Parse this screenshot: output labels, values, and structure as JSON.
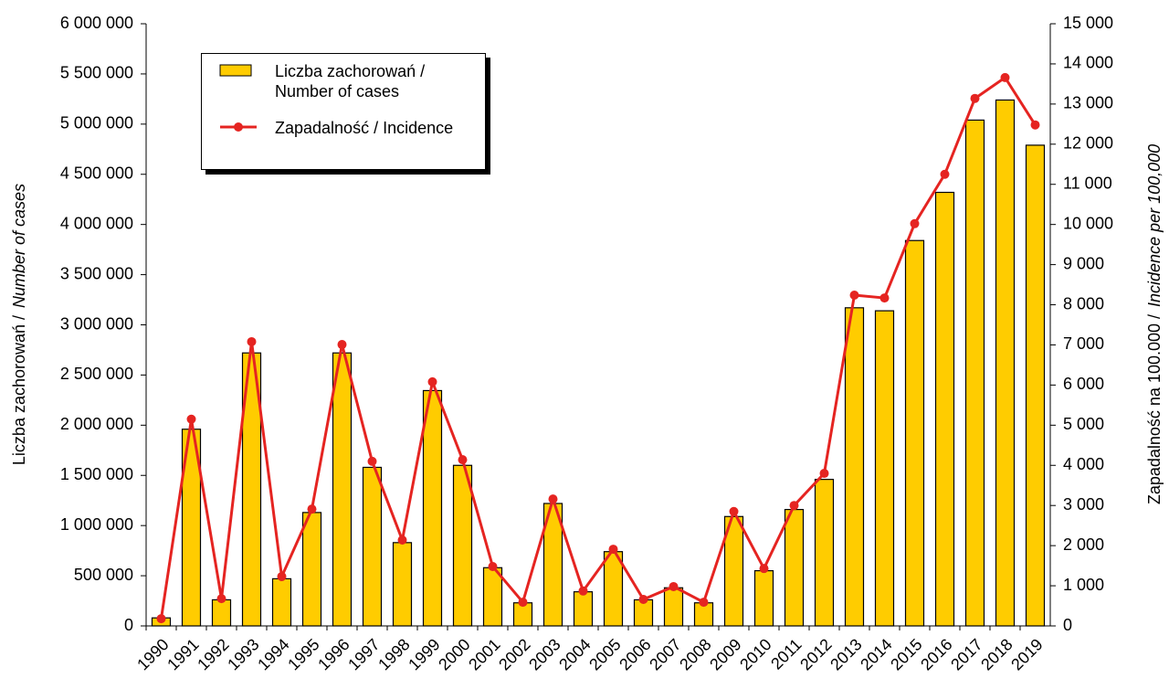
{
  "chart_data": {
    "type": "bar-line",
    "ylabel": "Liczba zachorowań /",
    "ylabel_italic": "Number of cases",
    "y2label": "Zapadalność na 100.000 /",
    "y2label_italic": "Incidence per 100,000",
    "categories": [
      "1990",
      "1991",
      "1992",
      "1993",
      "1994",
      "1995",
      "1996",
      "1997",
      "1998",
      "1999",
      "2000",
      "2001",
      "2002",
      "2003",
      "2004",
      "2005",
      "2006",
      "2007",
      "2008",
      "2009",
      "2010",
      "2011",
      "2012",
      "2013",
      "2014",
      "2015",
      "2016",
      "2017",
      "2018",
      "2019"
    ],
    "series": [
      {
        "name": "Liczba zachorowań / Number of cases",
        "type": "bar",
        "color": "#ffcc00",
        "values": [
          80000,
          1960000,
          260000,
          2720000,
          470000,
          1130000,
          2720000,
          1580000,
          830000,
          2345000,
          1600000,
          580000,
          230000,
          1220000,
          340000,
          740000,
          260000,
          380000,
          230000,
          1090000,
          550000,
          1160000,
          1460000,
          3170000,
          3140000,
          3840000,
          4320000,
          5040000,
          5240000,
          4790000
        ]
      },
      {
        "name": "Zapadalność / Incidence",
        "type": "line",
        "color": "#e52421",
        "axis": "y2",
        "values": [
          180,
          5150,
          680,
          7080,
          1230,
          2910,
          7010,
          4100,
          2140,
          6080,
          4140,
          1480,
          590,
          3160,
          870,
          1910,
          660,
          980,
          590,
          2850,
          1430,
          3000,
          3800,
          8240,
          8170,
          10020,
          11250,
          13140,
          13660,
          12480
        ]
      }
    ],
    "ylim": [
      0,
      6000000
    ],
    "yticks": [
      0,
      {
        "value": 500000,
        "label": "500 000"
      },
      {
        "value": 1000000,
        "label": "1 000 000"
      },
      {
        "value": 1500000,
        "label": "1 500 000"
      },
      {
        "value": 2000000,
        "label": "2 000 000"
      },
      {
        "value": 2500000,
        "label": "2 500 000"
      },
      {
        "value": 3000000,
        "label": "3 000 000"
      },
      {
        "value": 3500000,
        "label": "3 500 000"
      },
      {
        "value": 4000000,
        "label": "4 000 000"
      },
      {
        "value": 4500000,
        "label": "4 500 000"
      },
      {
        "value": 5000000,
        "label": "5 000 000"
      },
      {
        "value": 5500000,
        "label": "5 500 000"
      },
      {
        "value": 6000000,
        "label": "6 000 000"
      }
    ],
    "y2lim": [
      0,
      15000
    ],
    "y2ticks": [
      0,
      {
        "value": 1000,
        "label": "1 000"
      },
      {
        "value": 2000,
        "label": "2 000"
      },
      {
        "value": 3000,
        "label": "3 000"
      },
      {
        "value": 4000,
        "label": "4 000"
      },
      {
        "value": 5000,
        "label": "5 000"
      },
      {
        "value": 6000,
        "label": "6 000"
      },
      {
        "value": 7000,
        "label": "7 000"
      },
      {
        "value": 8000,
        "label": "8 000"
      },
      {
        "value": 9000,
        "label": "9 000"
      },
      {
        "value": 10000,
        "label": "10 000"
      },
      {
        "value": 11000,
        "label": "11 000"
      },
      {
        "value": 12000,
        "label": "12 000"
      },
      {
        "value": 13000,
        "label": "13 000"
      },
      {
        "value": 14000,
        "label": "14 000"
      },
      {
        "value": 15000,
        "label": "15 000"
      }
    ],
    "legend": "upper-left"
  }
}
